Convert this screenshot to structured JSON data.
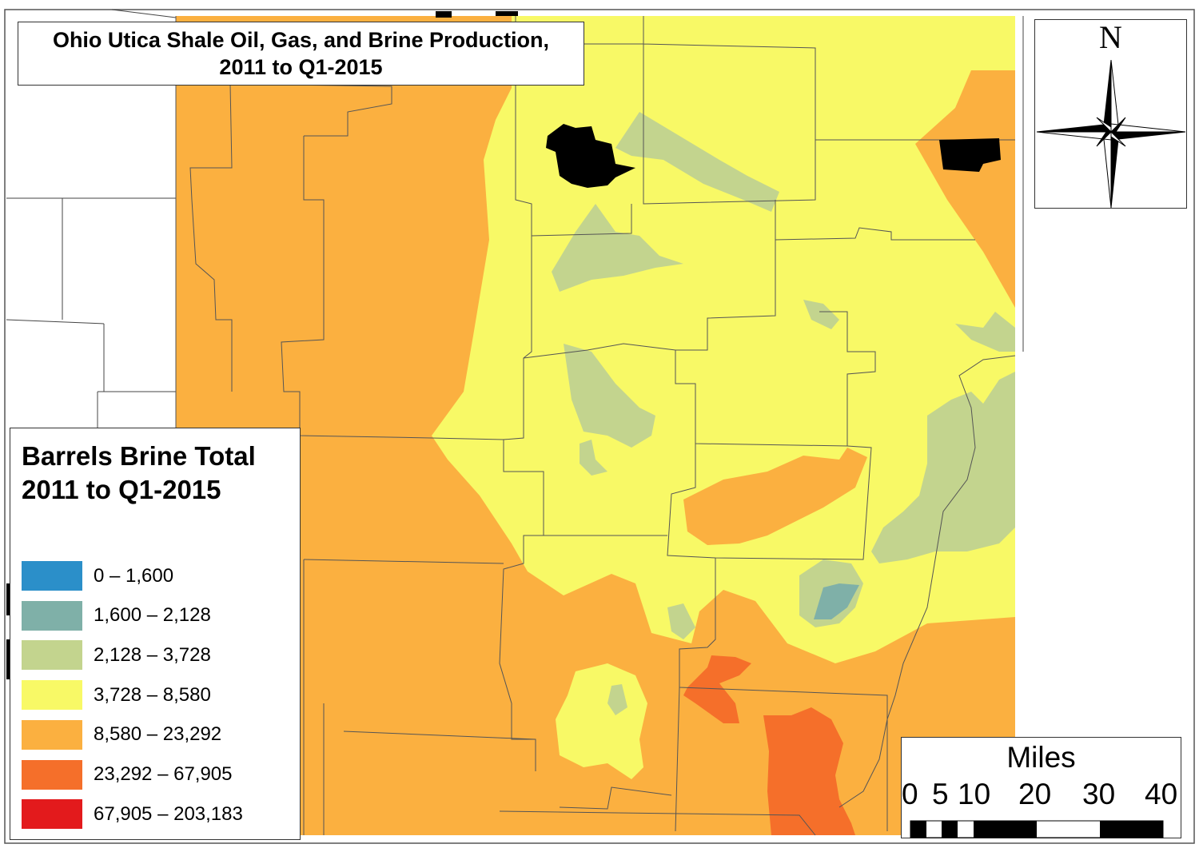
{
  "title": {
    "line1": "Ohio Utica Shale Oil, Gas, and Brine Production,",
    "line2": "2011 to Q1-2015"
  },
  "legend": {
    "title_line1": "Barrels Brine Total",
    "title_line2": "2011 to Q1-2015",
    "classes": [
      {
        "label": "0 – 1,600",
        "color": "#2b8fc9"
      },
      {
        "label": "1,600 – 2,128",
        "color": "#7fb0a8"
      },
      {
        "label": "2,128 – 3,728",
        "color": "#c3d48e"
      },
      {
        "label": "3,728 – 8,580",
        "color": "#f8f966"
      },
      {
        "label": "8,580 – 23,292",
        "color": "#fbb040"
      },
      {
        "label": "23,292 – 67,905",
        "color": "#f56f2a"
      },
      {
        "label": "67,905 – 203,183",
        "color": "#e31a1c"
      }
    ]
  },
  "compass": {
    "north_label": "N"
  },
  "scale_bar": {
    "unit": "Miles",
    "ticks": [
      "0",
      "5",
      "10",
      "20",
      "30",
      "40"
    ]
  }
}
